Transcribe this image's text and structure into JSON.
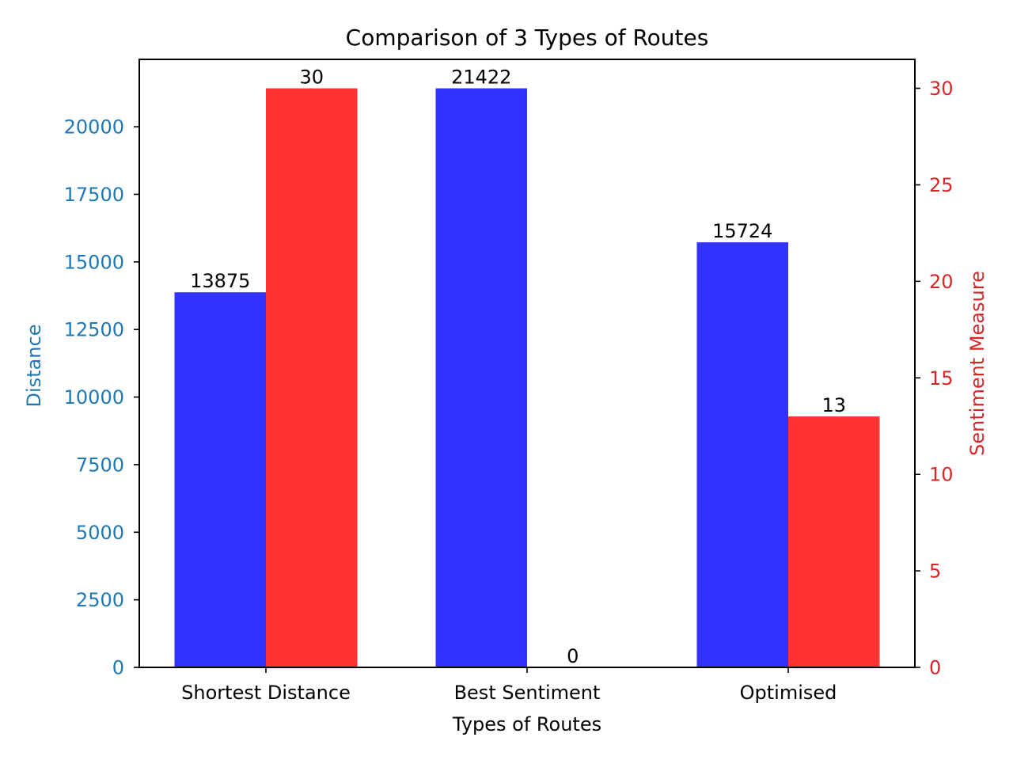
{
  "chart_data": {
    "type": "bar",
    "title": "Comparison of 3 Types of Routes",
    "xlabel": "Types of Routes",
    "ylabel": "Distance",
    "ylabel_right": "Sentiment Measure",
    "categories": [
      "Shortest Distance",
      "Best Sentiment",
      "Optimised"
    ],
    "series": [
      {
        "axis": "left",
        "color": "#3333ff",
        "values": [
          13875,
          21422,
          15724
        ]
      },
      {
        "axis": "right",
        "color": "#ff3333",
        "values": [
          30,
          0,
          13
        ]
      }
    ],
    "ylim": [
      0,
      22492
    ],
    "ylim_right": [
      0,
      31.5
    ],
    "yticks": [
      0,
      2500,
      5000,
      7500,
      10000,
      12500,
      15000,
      17500,
      20000
    ],
    "yticks_right": [
      0,
      5,
      10,
      15,
      20,
      25,
      30
    ],
    "grid": false,
    "colors": {
      "left_axis": "#1f77b4",
      "right_axis": "#d62728",
      "text": "#000000"
    }
  }
}
